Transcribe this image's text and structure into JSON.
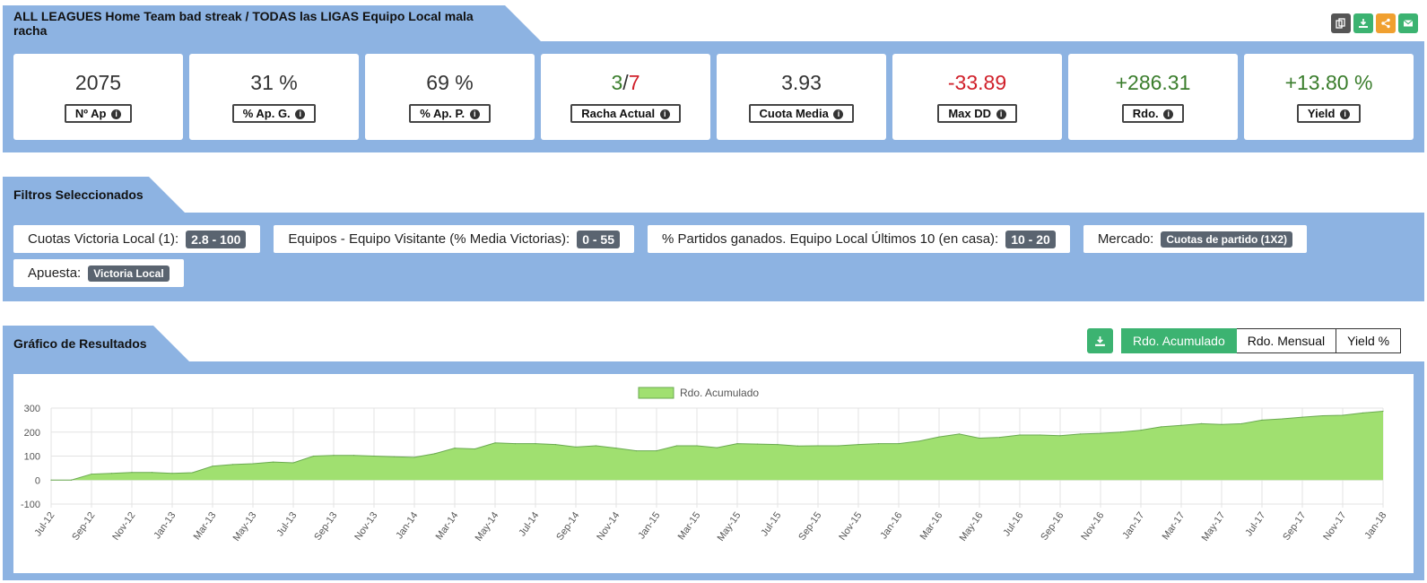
{
  "header": {
    "title": "ALL LEAGUES Home Team bad streak / TODAS las LIGAS Equipo Local mala racha",
    "icons": [
      "copy-icon",
      "download-icon",
      "share-icon",
      "email-icon"
    ],
    "icon_colors": [
      "#555555",
      "#3cb371",
      "#f0a030",
      "#3cb371"
    ]
  },
  "stats": [
    {
      "value": "2075",
      "label": "Nº Ap"
    },
    {
      "value": "31 %",
      "label": "% Ap. G."
    },
    {
      "value": "69 %",
      "label": "% Ap. P."
    },
    {
      "value_win": "3",
      "value_sep": "/",
      "value_loss": "7",
      "label": "Racha Actual"
    },
    {
      "value": "3.93",
      "label": "Cuota Media"
    },
    {
      "value": "-33.89",
      "label": "Max DD"
    },
    {
      "value": "+286.31",
      "label": "Rdo."
    },
    {
      "value": "+13.80 %",
      "label": "Yield"
    }
  ],
  "filters": {
    "title": "Filtros Seleccionados",
    "items": [
      {
        "label": "Cuotas Victoria Local (1):",
        "value": "2.8 - 100"
      },
      {
        "label": "Equipos - Equipo Visitante (% Media Victorias):",
        "value": "0 - 55"
      },
      {
        "label": "% Partidos ganados. Equipo Local Últimos 10 (en casa):",
        "value": "10 - 20"
      },
      {
        "label": "Mercado:",
        "value": "Cuotas de partido (1X2)"
      },
      {
        "label": "Apuesta:",
        "value": "Victoria Local"
      }
    ]
  },
  "results": {
    "title": "Gráfico de Resultados",
    "toggles": [
      "Rdo. Acumulado",
      "Rdo. Mensual",
      "Yield %"
    ],
    "active_toggle": "Rdo. Acumulado"
  },
  "colors": {
    "panel": "#8db3e2",
    "accent_green": "#3cb371",
    "area_fill": "#a0e070",
    "area_line": "#6aaa50",
    "positive": "#3a7d2c",
    "negative": "#d0202a"
  },
  "chart_data": {
    "type": "area",
    "legend": "Rdo. Acumulado",
    "legend_position": "top-center",
    "grid": true,
    "ylim": [
      -100,
      300
    ],
    "yticks": [
      300,
      200,
      100,
      0,
      -100
    ],
    "x": [
      "Jul-12",
      "Aug-12",
      "Sep-12",
      "Oct-12",
      "Nov-12",
      "Dec-12",
      "Jan-13",
      "Feb-13",
      "Mar-13",
      "Apr-13",
      "May-13",
      "Jun-13",
      "Jul-13",
      "Aug-13",
      "Sep-13",
      "Oct-13",
      "Nov-13",
      "Dec-13",
      "Jan-14",
      "Feb-14",
      "Mar-14",
      "Apr-14",
      "May-14",
      "Jun-14",
      "Jul-14",
      "Aug-14",
      "Sep-14",
      "Oct-14",
      "Nov-14",
      "Dec-14",
      "Jan-15",
      "Feb-15",
      "Mar-15",
      "Apr-15",
      "May-15",
      "Jun-15",
      "Jul-15",
      "Aug-15",
      "Sep-15",
      "Oct-15",
      "Nov-15",
      "Dec-15",
      "Jan-16",
      "Feb-16",
      "Mar-16",
      "Apr-16",
      "May-16",
      "Jun-16",
      "Jul-16",
      "Aug-16",
      "Sep-16",
      "Oct-16",
      "Nov-16",
      "Dec-16",
      "Jan-17",
      "Feb-17",
      "Mar-17",
      "Apr-17",
      "May-17",
      "Jun-17",
      "Jul-17",
      "Aug-17",
      "Sep-17",
      "Oct-17",
      "Nov-17",
      "Dec-17",
      "Jan-18"
    ],
    "tick_labels": [
      "Jul-12",
      "Sep-12",
      "Nov-12",
      "Jan-13",
      "Mar-13",
      "May-13",
      "Jul-13",
      "Sep-13",
      "Nov-13",
      "Jan-14",
      "Mar-14",
      "May-14",
      "Jul-14",
      "Sep-14",
      "Nov-14",
      "Jan-15",
      "Mar-15",
      "May-15",
      "Jul-15",
      "Sep-15",
      "Nov-15",
      "Jan-16",
      "Mar-16",
      "May-16",
      "Jul-16",
      "Sep-16",
      "Nov-16",
      "Jan-17",
      "Mar-17",
      "May-17",
      "Jul-17",
      "Sep-17",
      "Nov-17",
      "Jan-18"
    ],
    "series": [
      {
        "name": "Rdo. Acumulado",
        "values": [
          0,
          0,
          25,
          28,
          32,
          32,
          28,
          31,
          58,
          65,
          68,
          75,
          72,
          100,
          103,
          103,
          100,
          97,
          95,
          110,
          133,
          130,
          155,
          152,
          152,
          148,
          138,
          143,
          133,
          122,
          122,
          143,
          143,
          135,
          152,
          150,
          148,
          142,
          143,
          143,
          148,
          152,
          152,
          162,
          180,
          192,
          175,
          178,
          188,
          188,
          185,
          192,
          195,
          200,
          208,
          222,
          228,
          235,
          232,
          235,
          250,
          255,
          262,
          268,
          270,
          280,
          287
        ]
      }
    ]
  }
}
